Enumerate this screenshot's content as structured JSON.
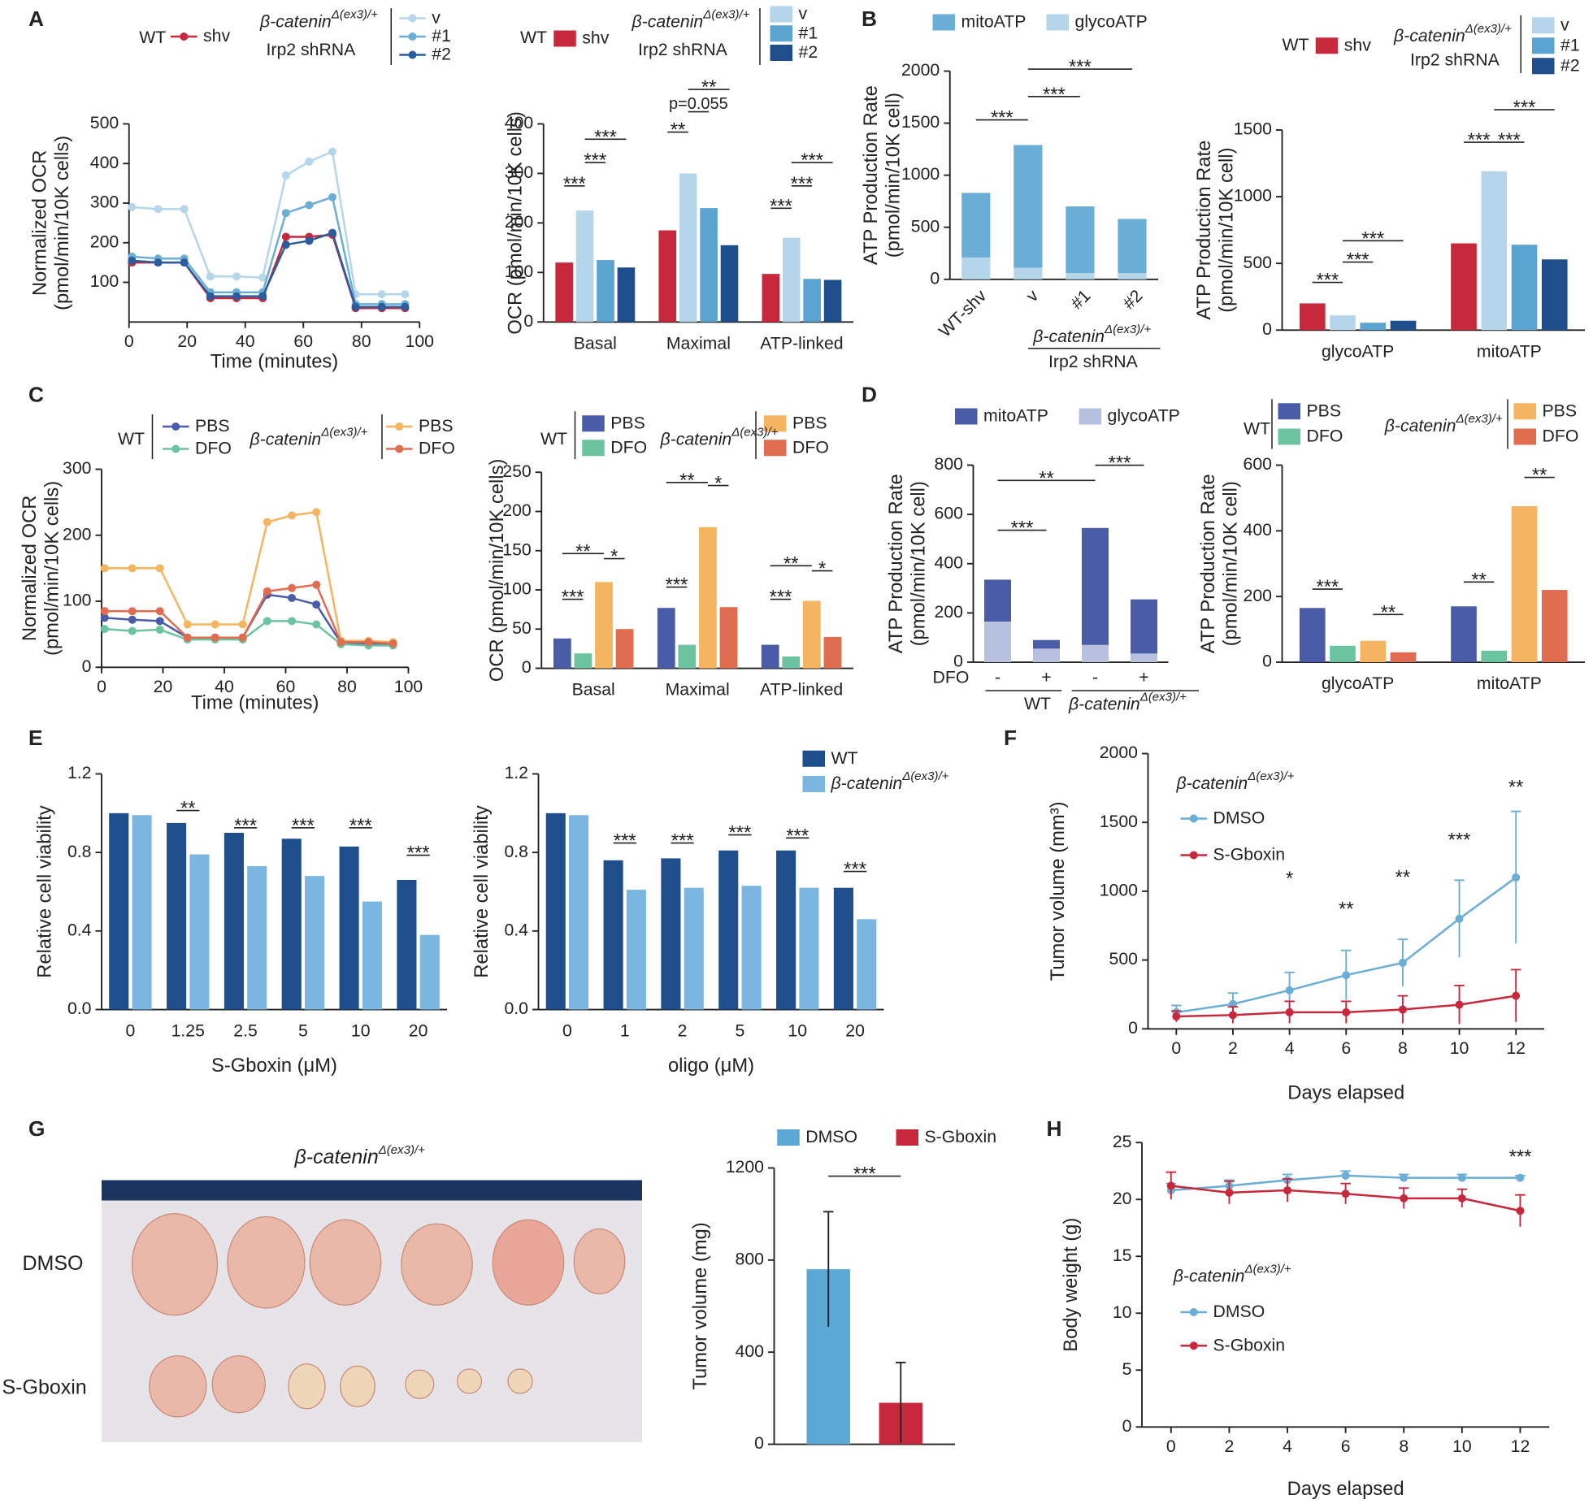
{
  "panel_labels": [
    "A",
    "B",
    "C",
    "D",
    "E",
    "F",
    "G",
    "H"
  ],
  "photo": {
    "genotype": "β-catenin",
    "genotype_sup": "Δ(ex3)/+",
    "rows": [
      "DMSO",
      "S-Gboxin"
    ]
  },
  "chart_data": [
    {
      "type": "line",
      "y_label": [
        "Normalized OCR",
        "(pmol/min/10K cells)"
      ],
      "x_label": "Time (minutes)",
      "group": "WT",
      "genotype": "β-catenin",
      "genotype_sup": "Δ(ex3)/+",
      "shrna": "Irp2 shRNA",
      "x": [
        1,
        10,
        19,
        28,
        37,
        46,
        54,
        62,
        70,
        78,
        87,
        95
      ],
      "xlim": [
        0,
        100
      ],
      "xticks": [
        0,
        20,
        40,
        60,
        80,
        100
      ],
      "ylim": [
        0,
        500
      ],
      "yticks": [
        100,
        200,
        300,
        400,
        500
      ],
      "series": [
        {
          "name": "shv",
          "color": "#c8283c",
          "values": [
            150,
            150,
            150,
            60,
            60,
            60,
            215,
            215,
            220,
            35,
            35,
            35
          ]
        },
        {
          "name": "v",
          "color": "#b5d6ea",
          "values": [
            290,
            285,
            285,
            115,
            115,
            112,
            370,
            405,
            430,
            70,
            70,
            70
          ]
        },
        {
          "name": "#1",
          "color": "#6aaed6",
          "values": [
            165,
            160,
            160,
            75,
            75,
            75,
            275,
            295,
            315,
            45,
            45,
            45
          ]
        },
        {
          "name": "#2",
          "color": "#2b5d9e",
          "values": [
            155,
            150,
            150,
            65,
            65,
            65,
            195,
            205,
            225,
            38,
            38,
            38
          ]
        }
      ]
    },
    {
      "type": "bar",
      "y_label": [
        "OCR (pmol/min/10K cells)"
      ],
      "group": "WT",
      "genotype": "β-catenin",
      "genotype_sup": "Δ(ex3)/+",
      "shrna": "Irp2 shRNA",
      "categories": [
        "Basal",
        "Maximal",
        "ATP-linked"
      ],
      "ylim": [
        0,
        400
      ],
      "yticks": [
        0,
        100,
        200,
        300,
        400
      ],
      "series": [
        {
          "name": "shv",
          "color": "#c8283c",
          "values": [
            120,
            185,
            97
          ]
        },
        {
          "name": "v",
          "color": "#b5d6ea",
          "values": [
            225,
            300,
            170
          ]
        },
        {
          "name": "#1",
          "color": "#5ba3d0",
          "values": [
            125,
            230,
            87
          ]
        },
        {
          "name": "#2",
          "color": "#1f4e8c",
          "values": [
            110,
            155,
            85
          ]
        }
      ],
      "annotations": [
        "***",
        "***",
        "***",
        "**",
        "p=0.055",
        "**",
        "***",
        "***",
        "***"
      ]
    },
    {
      "type": "stacked_bar",
      "y_label": [
        "ATP Production Rate",
        "(pmol/min/10K cell)"
      ],
      "genotype": "β-catenin",
      "genotype_sup": "Δ(ex3)/+",
      "shrna": "Irp2 shRNA",
      "categories": [
        "WT-shv",
        "v",
        "#1",
        "#2"
      ],
      "ylim": [
        0,
        2000
      ],
      "yticks": [
        0,
        500,
        1000,
        1500,
        2000
      ],
      "series": [
        {
          "name": "mitoATP",
          "color": "#6aaed6",
          "values": [
            620,
            1180,
            640,
            520
          ]
        },
        {
          "name": "glycoATP",
          "color": "#b5d6ea",
          "values": [
            210,
            110,
            60,
            60
          ]
        }
      ],
      "annotations": [
        "***",
        "***",
        "***"
      ]
    },
    {
      "type": "bar",
      "y_label": [
        "ATP Production Rate",
        "(pmol/min/10K cell)"
      ],
      "group": "WT",
      "genotype": "β-catenin",
      "genotype_sup": "Δ(ex3)/+",
      "shrna": "Irp2 shRNA",
      "categories": [
        "glycoATP",
        "mitoATP"
      ],
      "ylim": [
        0,
        1500
      ],
      "yticks": [
        0,
        500,
        1000,
        1500
      ],
      "series": [
        {
          "name": "shv",
          "color": "#c8283c",
          "values": [
            200,
            650
          ]
        },
        {
          "name": "v",
          "color": "#b5d6ea",
          "values": [
            110,
            1190
          ]
        },
        {
          "name": "#1",
          "color": "#5ba3d0",
          "values": [
            55,
            640
          ]
        },
        {
          "name": "#2",
          "color": "#1f4e8c",
          "values": [
            70,
            530
          ]
        }
      ],
      "annotations": [
        "***",
        "***",
        "***",
        "***",
        "***",
        "***"
      ]
    },
    {
      "type": "line",
      "y_label": [
        "Normalized OCR",
        "(pmol/min/10K cells)"
      ],
      "x_label": "Time (minutes)",
      "group": "WT",
      "genotype": "β-catenin",
      "genotype_sup": "Δ(ex3)/+",
      "x": [
        1,
        10,
        19,
        28,
        37,
        46,
        54,
        62,
        70,
        78,
        87,
        95
      ],
      "xlim": [
        0,
        100
      ],
      "xticks": [
        0,
        20,
        40,
        60,
        80,
        100
      ],
      "ylim": [
        0,
        300
      ],
      "yticks": [
        0,
        100,
        200,
        300
      ],
      "series": [
        {
          "name": "PBS",
          "color": "#4a5ca8",
          "values": [
            75,
            72,
            70,
            45,
            45,
            45,
            110,
            105,
            95,
            37,
            35,
            35
          ]
        },
        {
          "name": "DFO",
          "color": "#6cc3a0",
          "values": [
            58,
            55,
            57,
            42,
            42,
            42,
            70,
            70,
            65,
            35,
            33,
            33
          ]
        },
        {
          "name": "PBS",
          "color": "#f5b560",
          "values": [
            150,
            150,
            150,
            65,
            65,
            65,
            220,
            230,
            235,
            40,
            40,
            38
          ]
        },
        {
          "name": "DFO",
          "color": "#e06d4f",
          "values": [
            85,
            85,
            85,
            45,
            45,
            45,
            115,
            120,
            125,
            38,
            38,
            36
          ]
        }
      ]
    },
    {
      "type": "bar",
      "y_label": [
        "OCR (pmol/min/10K cells)"
      ],
      "group": "WT",
      "genotype": "β-catenin",
      "genotype_sup": "Δ(ex3)/+",
      "categories": [
        "Basal",
        "Maximal",
        "ATP-linked"
      ],
      "ylim": [
        0,
        250
      ],
      "yticks": [
        0,
        50,
        100,
        150,
        200,
        250
      ],
      "series": [
        {
          "name": "PBS",
          "color": "#4a5ca8",
          "values": [
            38,
            77,
            30
          ]
        },
        {
          "name": "DFO",
          "color": "#6cc3a0",
          "values": [
            19,
            30,
            15
          ]
        },
        {
          "name": "PBS",
          "color": "#f5b560",
          "values": [
            110,
            180,
            86
          ]
        },
        {
          "name": "DFO",
          "color": "#e06d4f",
          "values": [
            50,
            78,
            40
          ]
        }
      ],
      "annotations": [
        "***",
        "**",
        "*",
        "***",
        "**",
        "*",
        "***",
        "**",
        "*"
      ]
    },
    {
      "type": "stacked_bar",
      "y_label": [
        "ATP Production Rate",
        "(pmol/min/10K cell)"
      ],
      "treatment": "DFO",
      "group": "WT",
      "genotype": "β-catenin",
      "genotype_sup": "Δ(ex3)/+",
      "categories": [
        "-",
        "+",
        "-",
        "+"
      ],
      "ylim": [
        0,
        800
      ],
      "yticks": [
        0,
        200,
        400,
        600,
        800
      ],
      "series": [
        {
          "name": "mitoATP",
          "color": "#4a5ca8",
          "values": [
            170,
            35,
            475,
            220
          ]
        },
        {
          "name": "glycoATP",
          "color": "#b8c0e0",
          "values": [
            165,
            55,
            70,
            35
          ]
        }
      ],
      "annotations": [
        "***",
        "**",
        "***"
      ]
    },
    {
      "type": "bar",
      "y_label": [
        "ATP Production Rate",
        "(pmol/min/10K cell)"
      ],
      "group": "WT",
      "genotype": "β-catenin",
      "genotype_sup": "Δ(ex3)/+",
      "categories": [
        "glycoATP",
        "mitoATP"
      ],
      "ylim": [
        0,
        600
      ],
      "yticks": [
        0,
        200,
        400,
        600
      ],
      "series": [
        {
          "name": "PBS",
          "color": "#4a5ca8",
          "values": [
            165,
            170
          ]
        },
        {
          "name": "DFO",
          "color": "#6cc3a0",
          "values": [
            50,
            35
          ]
        },
        {
          "name": "PBS",
          "color": "#f5b560",
          "values": [
            65,
            475
          ]
        },
        {
          "name": "DFO",
          "color": "#e06d4f",
          "values": [
            30,
            220
          ]
        }
      ],
      "annotations": [
        "***",
        "**",
        "**",
        "**"
      ]
    },
    {
      "type": "bar",
      "y_label": [
        "Relative cell viability"
      ],
      "x_label": "S-Gboxin (μM)",
      "categories": [
        "0",
        "1.25",
        "2.5",
        "5",
        "10",
        "20"
      ],
      "ylim": [
        0,
        1.2
      ],
      "yticks": [
        {
          "value": 0,
          "label": "0.0"
        },
        0.4,
        0.8,
        1.2
      ],
      "series": [
        {
          "color": "#1f4e8c",
          "values": [
            1.0,
            0.95,
            0.9,
            0.87,
            0.83,
            0.66
          ]
        },
        {
          "color": "#7ab6df",
          "values": [
            0.99,
            0.79,
            0.73,
            0.68,
            0.55,
            0.38
          ]
        }
      ],
      "annotations": [
        "**",
        "***",
        "***",
        "***",
        "***"
      ]
    },
    {
      "type": "bar",
      "y_label": [
        "Relative cell viability"
      ],
      "x_label": "oligo (μM)",
      "categories": [
        "0",
        "1",
        "2",
        "5",
        "10",
        "20"
      ],
      "ylim": [
        0,
        1.2
      ],
      "yticks": [
        {
          "value": 0,
          "label": "0.0"
        },
        0.4,
        0.8,
        1.2
      ],
      "series": [
        {
          "name": "WT",
          "color": "#1f4e8c",
          "values": [
            1.0,
            0.76,
            0.77,
            0.81,
            0.81,
            0.62
          ]
        },
        {
          "name": "β-catenin",
          "name_sup": "Δ(ex3)/+",
          "color": "#7ab6df",
          "values": [
            0.99,
            0.61,
            0.62,
            0.63,
            0.62,
            0.46
          ]
        }
      ],
      "annotations": [
        "***",
        "***",
        "***",
        "***",
        "***"
      ]
    },
    {
      "type": "line",
      "y_label": [
        "Tumor volume (mm³)"
      ],
      "x_label": "Days elapsed",
      "genotype": "β-catenin",
      "genotype_sup": "Δ(ex3)/+",
      "x": [
        0,
        2,
        4,
        6,
        8,
        10,
        12
      ],
      "xlim": [
        -1,
        13
      ],
      "xticks": [
        0,
        2,
        4,
        6,
        8,
        10,
        12
      ],
      "ylim": [
        0,
        2000
      ],
      "yticks": [
        0,
        500,
        1000,
        1500,
        2000
      ],
      "series": [
        {
          "name": "DMSO",
          "color": "#6aaed6",
          "values": [
            120,
            180,
            280,
            390,
            480,
            800,
            1100
          ],
          "errors": [
            50,
            80,
            130,
            180,
            170,
            280,
            480
          ]
        },
        {
          "name": "S-Gboxin",
          "color": "#c8283c",
          "values": [
            90,
            100,
            120,
            120,
            140,
            175,
            240
          ],
          "errors": [
            40,
            60,
            80,
            80,
            100,
            140,
            190
          ]
        }
      ],
      "annotations": [
        "*",
        "**",
        "**",
        "***",
        "**"
      ]
    },
    {
      "type": "bar",
      "y_label": [
        "Tumor volume (mg)"
      ],
      "ylim": [
        0,
        1200
      ],
      "yticks": [
        0,
        400,
        800,
        1200
      ],
      "series": [
        {
          "name": "DMSO",
          "color": "#5ba7d6",
          "values": [
            760
          ],
          "errors": [
            250
          ]
        },
        {
          "name": "S-Gboxin",
          "color": "#c8283c",
          "values": [
            180
          ],
          "errors": [
            175
          ]
        }
      ],
      "annotations": [
        "***"
      ]
    },
    {
      "type": "line",
      "y_label": [
        "Body weight (g)"
      ],
      "x_label": "Days elapsed",
      "genotype": "β-catenin",
      "genotype_sup": "Δ(ex3)/+",
      "x": [
        0,
        2,
        4,
        6,
        8,
        10,
        12
      ],
      "xlim": [
        -1,
        13
      ],
      "xticks": [
        0,
        2,
        4,
        6,
        8,
        10,
        12
      ],
      "ylim": [
        0,
        25
      ],
      "yticks": [
        0,
        5,
        10,
        15,
        20,
        25
      ],
      "series": [
        {
          "name": "DMSO",
          "color": "#6aaed6",
          "values": [
            20.8,
            21.2,
            21.7,
            22.1,
            21.9,
            21.9,
            21.9
          ],
          "errors": [
            0.6,
            0.5,
            0.5,
            0.4,
            0.3,
            0.3,
            0.2
          ]
        },
        {
          "name": "S-Gboxin",
          "color": "#c8283c",
          "values": [
            21.2,
            20.6,
            20.8,
            20.5,
            20.1,
            20.1,
            19.0
          ],
          "errors": [
            1.2,
            1.0,
            1.0,
            0.9,
            0.9,
            0.8,
            1.4
          ]
        }
      ],
      "annotations": [
        "***"
      ]
    }
  ]
}
